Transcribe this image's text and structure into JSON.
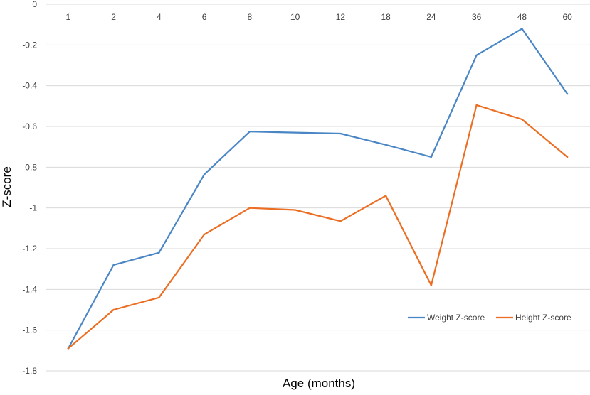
{
  "chart_data": {
    "type": "line",
    "categories": [
      "1",
      "2",
      "4",
      "6",
      "8",
      "10",
      "12",
      "18",
      "24",
      "36",
      "48",
      "60"
    ],
    "series": [
      {
        "name": "Weight Z-score",
        "color": "#4a86c5",
        "values": [
          -1.69,
          -1.28,
          -1.22,
          -0.835,
          -0.625,
          -0.63,
          -0.635,
          -0.69,
          -0.75,
          -0.25,
          -0.12,
          -0.44
        ]
      },
      {
        "name": "Height Z-score",
        "color": "#ec6e23",
        "values": [
          -1.69,
          -1.5,
          -1.44,
          -1.13,
          -1.0,
          -1.01,
          -1.065,
          -0.94,
          -1.38,
          -0.495,
          -0.565,
          -0.75
        ]
      }
    ],
    "y_ticks": [
      "0",
      "-0.2",
      "-0.4",
      "-0.6",
      "-0.8",
      "-1",
      "-1.2",
      "-1.4",
      "-1.6",
      "-1.8"
    ],
    "ylim": [
      -1.8,
      0
    ],
    "xlabel": "Age (months)",
    "ylabel": "Z-score",
    "x_axis_position": "top",
    "grid": true,
    "legend_position": "bottom-right"
  }
}
